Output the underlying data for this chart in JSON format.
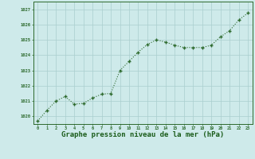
{
  "x": [
    0,
    1,
    2,
    3,
    4,
    5,
    6,
    7,
    8,
    9,
    10,
    11,
    12,
    13,
    14,
    15,
    16,
    17,
    18,
    19,
    20,
    21,
    22,
    23
  ],
  "y": [
    1019.7,
    1020.4,
    1021.0,
    1021.3,
    1020.8,
    1020.85,
    1021.2,
    1021.45,
    1021.5,
    1023.0,
    1023.6,
    1024.2,
    1024.7,
    1025.0,
    1024.85,
    1024.65,
    1024.5,
    1024.5,
    1024.5,
    1024.65,
    1025.2,
    1025.6,
    1026.3,
    1026.75
  ],
  "ylim": [
    1019.5,
    1027.5
  ],
  "xlim": [
    -0.5,
    23.5
  ],
  "yticks": [
    1020,
    1021,
    1022,
    1023,
    1024,
    1025,
    1026,
    1027
  ],
  "xticks": [
    0,
    1,
    2,
    3,
    4,
    5,
    6,
    7,
    8,
    9,
    10,
    11,
    12,
    13,
    14,
    15,
    16,
    17,
    18,
    19,
    20,
    21,
    22,
    23
  ],
  "line_color": "#2d6a2d",
  "marker_color": "#2d6a2d",
  "bg_color": "#ceeaea",
  "grid_color": "#aacece",
  "title": "Graphe pression niveau de la mer (hPa)",
  "title_color": "#1a5c1a",
  "title_fontsize": 6.5,
  "tick_color": "#1a5c1a",
  "axis_color": "#2d6a2d"
}
